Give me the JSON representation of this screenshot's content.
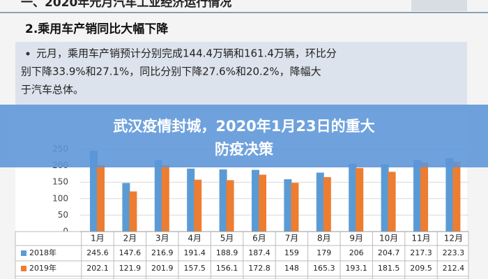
{
  "slide": {
    "header": "一、2020年元月汽车工业经济运行情况",
    "section_title": "2.乘用车产销同比大幅下降",
    "bullet_lines": [
      "元月，乘用车产销预计分别完成144.4万辆和161.4万辆，环比分",
      "别下降33.9%和27.1%，同比分别下降27.6%和20.2%，降幅大",
      "于汽车总体。"
    ]
  },
  "banner": {
    "title_lines": [
      "武汉疫情封城，2020年1月23日的重大",
      "防疫决策"
    ]
  },
  "chart_data": {
    "type": "bar",
    "categories": [
      "1月",
      "2月",
      "3月",
      "4月",
      "5月",
      "6月",
      "7月",
      "8月",
      "9月",
      "10月",
      "11月",
      "12月"
    ],
    "series": [
      {
        "name": "2018年",
        "color": "#5b9bd5",
        "values": [
          245.6,
          147.6,
          216.9,
          191.4,
          188.9,
          187.4,
          159.0,
          179.0,
          206.0,
          204.7,
          217.3,
          223.3
        ]
      },
      {
        "name": "2019年",
        "color": "#ed7d31",
        "values": [
          202.1,
          121.9,
          201.9,
          157.5,
          156.1,
          172.8,
          148.0,
          165.3,
          193.1,
          181.5,
          209.5,
          212.4
        ]
      }
    ],
    "ylim": [
      0,
      250
    ],
    "yticks": [
      0,
      50,
      100,
      150,
      200,
      250
    ],
    "grid": true
  }
}
